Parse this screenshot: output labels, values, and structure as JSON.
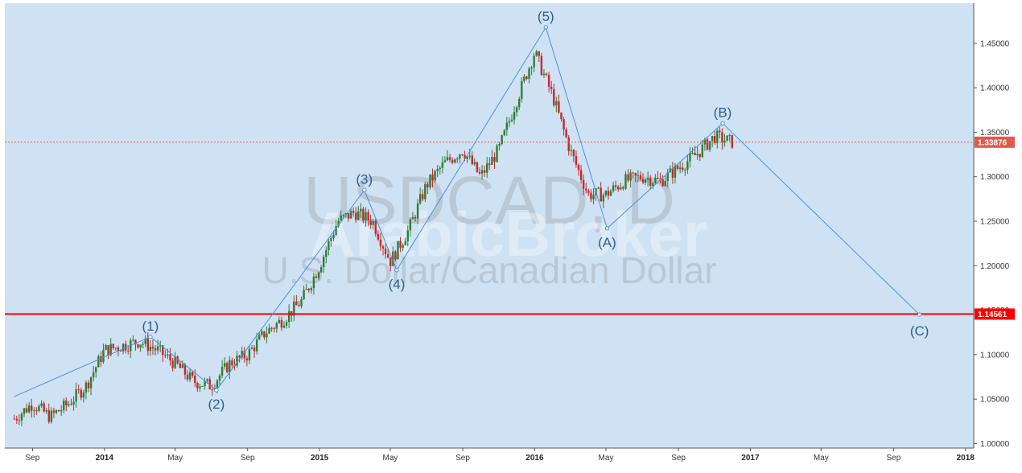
{
  "chart_data": {
    "type": "candlestick",
    "watermark": {
      "symbol": "USDCAD, D",
      "description": "U.S. Dollar/Canadian Dollar",
      "brand": "ArabicBroker"
    },
    "x_axis": {
      "ticks": [
        {
          "label": "Sep",
          "date": "2013-09-01",
          "bold": false
        },
        {
          "label": "2014",
          "date": "2014-01-01",
          "bold": true
        },
        {
          "label": "May",
          "date": "2014-05-01",
          "bold": false
        },
        {
          "label": "Sep",
          "date": "2014-09-01",
          "bold": false
        },
        {
          "label": "2015",
          "date": "2015-01-01",
          "bold": true
        },
        {
          "label": "May",
          "date": "2015-05-01",
          "bold": false
        },
        {
          "label": "Sep",
          "date": "2015-09-01",
          "bold": false
        },
        {
          "label": "2016",
          "date": "2016-01-01",
          "bold": true
        },
        {
          "label": "May",
          "date": "2016-05-01",
          "bold": false
        },
        {
          "label": "Sep",
          "date": "2016-09-01",
          "bold": false
        },
        {
          "label": "2017",
          "date": "2017-01-01",
          "bold": true
        },
        {
          "label": "May",
          "date": "2017-05-01",
          "bold": false
        },
        {
          "label": "Sep",
          "date": "2017-09-01",
          "bold": false
        },
        {
          "label": "2018",
          "date": "2018-01-01",
          "bold": true
        }
      ]
    },
    "y_axis": {
      "ylim": [
        0.995,
        1.495
      ],
      "ticks": [
        "1.00000",
        "1.05000",
        "1.10000",
        "1.15000",
        "1.20000",
        "1.25000",
        "1.30000",
        "1.35000",
        "1.40000",
        "1.45000"
      ]
    },
    "price_series": [
      [
        "2013-08-01",
        1.028
      ],
      [
        "2013-09-01",
        1.045
      ],
      [
        "2013-10-01",
        1.03
      ],
      [
        "2013-11-01",
        1.045
      ],
      [
        "2013-12-01",
        1.065
      ],
      [
        "2014-01-01",
        1.105
      ],
      [
        "2014-02-01",
        1.11
      ],
      [
        "2014-03-01",
        1.115
      ],
      [
        "2014-04-01",
        1.105
      ],
      [
        "2014-05-01",
        1.09
      ],
      [
        "2014-06-01",
        1.07
      ],
      [
        "2014-07-01",
        1.065
      ],
      [
        "2014-08-01",
        1.09
      ],
      [
        "2014-09-01",
        1.1
      ],
      [
        "2014-10-01",
        1.125
      ],
      [
        "2014-11-01",
        1.14
      ],
      [
        "2014-12-01",
        1.16
      ],
      [
        "2015-01-01",
        1.2
      ],
      [
        "2015-02-01",
        1.25
      ],
      [
        "2015-03-01",
        1.26
      ],
      [
        "2015-04-01",
        1.25
      ],
      [
        "2015-05-01",
        1.205
      ],
      [
        "2015-06-01",
        1.24
      ],
      [
        "2015-07-01",
        1.29
      ],
      [
        "2015-08-01",
        1.315
      ],
      [
        "2015-09-01",
        1.33
      ],
      [
        "2015-10-01",
        1.3
      ],
      [
        "2015-11-01",
        1.33
      ],
      [
        "2015-12-01",
        1.385
      ],
      [
        "2016-01-01",
        1.44
      ],
      [
        "2016-02-01",
        1.39
      ],
      [
        "2016-03-01",
        1.33
      ],
      [
        "2016-04-01",
        1.28
      ],
      [
        "2016-05-01",
        1.28
      ],
      [
        "2016-06-01",
        1.295
      ],
      [
        "2016-07-01",
        1.3
      ],
      [
        "2016-08-01",
        1.295
      ],
      [
        "2016-09-01",
        1.31
      ],
      [
        "2016-10-01",
        1.325
      ],
      [
        "2016-11-01",
        1.345
      ],
      [
        "2016-12-01",
        1.339
      ]
    ],
    "elliott_wave": {
      "points": [
        {
          "label": "",
          "date": "2013-08-01",
          "value": 1.053
        },
        {
          "label": "(1)",
          "date": "2014-03-20",
          "value": 1.12
        },
        {
          "label": "(2)",
          "date": "2014-07-10",
          "value": 1.06
        },
        {
          "label": "(3)",
          "date": "2015-03-18",
          "value": 1.285
        },
        {
          "label": "(4)",
          "date": "2015-05-12",
          "value": 1.195
        },
        {
          "label": "(5)",
          "date": "2016-01-20",
          "value": 1.468
        },
        {
          "label": "(A)",
          "date": "2016-05-03",
          "value": 1.242
        },
        {
          "label": "(B)",
          "date": "2016-11-15",
          "value": 1.36
        },
        {
          "label": "(C)",
          "date": "2017-10-15",
          "value": 1.145
        }
      ]
    },
    "levels": [
      {
        "value": 1.33876,
        "label": "1.33876",
        "style": "dotted",
        "color": "#e25a4b"
      },
      {
        "value": 1.14561,
        "label": "1.14561",
        "style": "solid",
        "color": "#ff0000"
      }
    ],
    "colors": {
      "background": "#cfe2f3",
      "wave_line": "#4a90d9",
      "candle_up": "#2e7d32",
      "candle_down": "#c62828"
    }
  }
}
